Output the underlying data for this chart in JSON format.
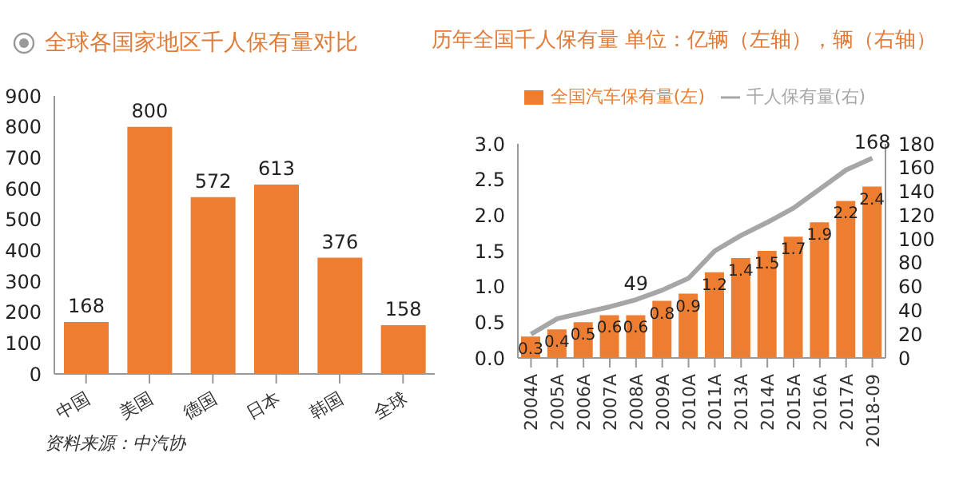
{
  "chart_data": [
    {
      "type": "bar",
      "title": "全球各国家地区千人保有量对比",
      "categories": [
        "中国",
        "美国",
        "德国",
        "日本",
        "韩国",
        "全球"
      ],
      "values": [
        168,
        800,
        572,
        613,
        376,
        158
      ],
      "color": "#ed7d31",
      "ylim": [
        0,
        900
      ],
      "yticks": [
        0,
        100,
        200,
        300,
        400,
        500,
        600,
        700,
        800,
        900
      ],
      "data_labels": true,
      "annotations": [
        "资料来源：中汽协"
      ]
    },
    {
      "type": "bar",
      "title": "历年全国千人保有量 单位：亿辆（左轴），辆（右轴）",
      "categories": [
        "2004A",
        "2005A",
        "2006A",
        "2007A",
        "2008A",
        "2009A",
        "2010A",
        "2011A",
        "2013A",
        "2014A",
        "2015A",
        "2016A",
        "2017A",
        "2018-09"
      ],
      "series": [
        {
          "name": "全国汽车保有量(左)",
          "type": "bar",
          "color": "#ed7d31",
          "values": [
            0.3,
            0.4,
            0.5,
            0.6,
            0.6,
            0.8,
            0.9,
            1.2,
            1.4,
            1.5,
            1.7,
            1.9,
            2.2,
            2.4
          ],
          "value_labels": [
            "0.3",
            "0.4",
            "0.5",
            "0.6",
            "0.6",
            "0.8",
            "0.9",
            "1.2",
            "1.4",
            "1.5",
            "1.7",
            "1.9",
            "2.2",
            "2.4"
          ]
        },
        {
          "name": "千人保有量(右)",
          "type": "line",
          "axis": "y2",
          "color": "#a6a6a6",
          "marker": "none",
          "values": [
            20,
            33,
            38,
            43,
            49,
            57,
            67,
            90,
            103,
            114,
            126,
            142,
            158,
            168
          ],
          "value_labels": [
            null,
            null,
            null,
            null,
            "49",
            null,
            null,
            null,
            null,
            null,
            null,
            null,
            null,
            "168"
          ]
        }
      ],
      "ylim": [
        0,
        3
      ],
      "yticks": [
        {
          "value": 0,
          "label": "0.0"
        },
        {
          "value": 0.5,
          "label": "0.5"
        },
        {
          "value": 1,
          "label": "1.0"
        },
        {
          "value": 1.5,
          "label": "1.5"
        },
        {
          "value": 2,
          "label": "2.0"
        },
        {
          "value": 2.5,
          "label": "2.5"
        },
        {
          "value": 3,
          "label": "3.0"
        }
      ],
      "y2lim": [
        0,
        180
      ],
      "y2ticks": [
        0,
        20,
        40,
        60,
        80,
        100,
        120,
        140,
        160,
        180
      ],
      "legend": "top"
    }
  ]
}
